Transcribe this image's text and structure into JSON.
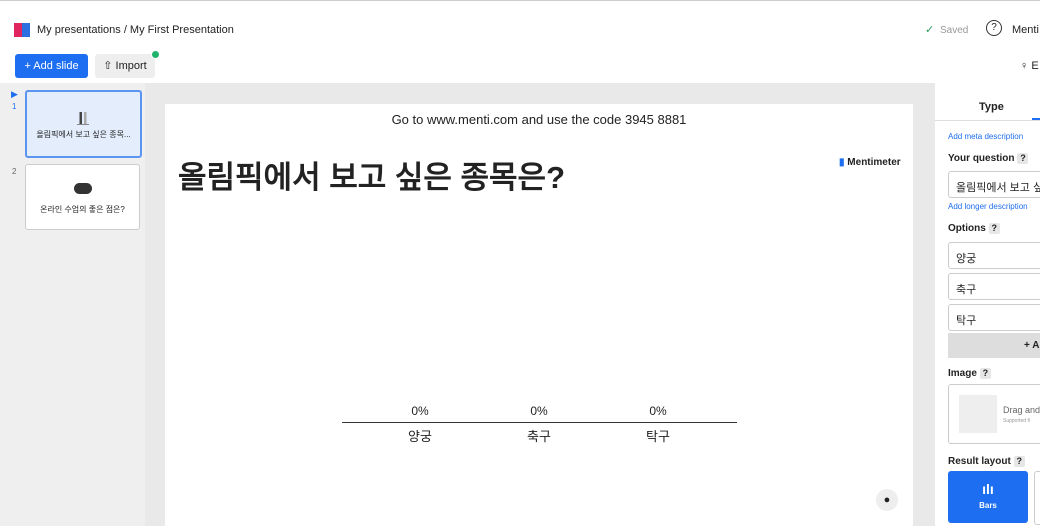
{
  "header": {
    "breadcrumb": "My presentations / My First Presentation",
    "saved": "Saved",
    "help": "?",
    "account": "Menti"
  },
  "toolbar": {
    "add_slide": "+ Add slide",
    "import": "Import",
    "right": "E"
  },
  "slides": [
    {
      "number": "1",
      "label": "올림픽에서 보고 싶은 종목..."
    },
    {
      "number": "2",
      "label": "온라인 수업의 좋은 점은?"
    }
  ],
  "slide": {
    "instructions": "Go to www.menti.com and use the code 3945 8881",
    "title": "올림픽에서 보고 싶은 종목은?",
    "brand": "Mentimeter",
    "results": [
      {
        "percent": "0%",
        "label": "양궁"
      },
      {
        "percent": "0%",
        "label": "축구"
      },
      {
        "percent": "0%",
        "label": "탁구"
      }
    ]
  },
  "panel": {
    "tab": "Type",
    "meta": "Add meta description",
    "question_label": "Your question",
    "question": "올림픽에서 보고 싶",
    "longer": "Add longer description",
    "options_label": "Options",
    "options": [
      "양궁",
      "축구",
      "탁구"
    ],
    "add_option": "+ A",
    "image_label": "Image",
    "drag": "Drag and",
    "supported": "Supported fi",
    "layout_label": "Result layout",
    "layout": "Bars",
    "hint": "?"
  }
}
